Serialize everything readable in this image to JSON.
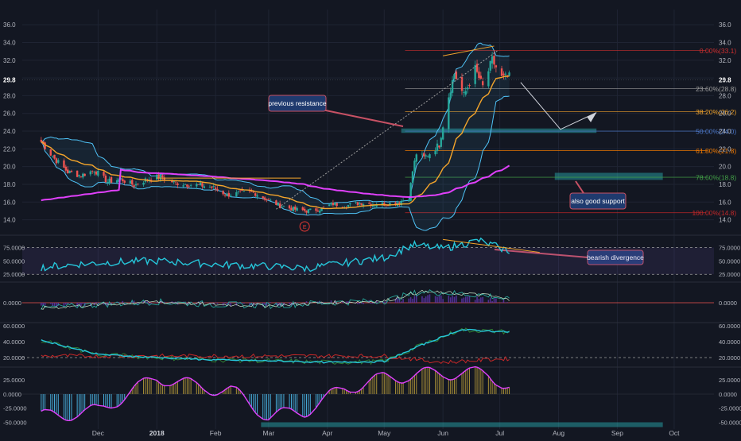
{
  "colors": {
    "background": "#131722",
    "grid": "#1f2433",
    "axis_text": "#b2b5be",
    "candle_up": "#26a69a",
    "candle_down": "#ef5350",
    "bollinger": "#4fc3f7",
    "ma_short": "#f4a52b",
    "ma_long": "#e040fb",
    "rsi": "#26c6da",
    "divergence": "#f4a52b",
    "callout_bg": "#1f3a6e",
    "callout_border": "#c75164",
    "zone": "#2bb3b9",
    "fib_0": "#d32f2f",
    "fib_236": "#9e9e9e",
    "fib_382": "#f4a52b",
    "fib_50": "#4d78c9",
    "fib_618": "#f57c00",
    "fib_786": "#43a047",
    "fib_100": "#c62828"
  },
  "chart_data": {
    "type": "candlestick",
    "x_ticks": [
      "Dec",
      "2018",
      "Feb",
      "Mar",
      "Apr",
      "May",
      "Jun",
      "Jul",
      "Aug",
      "Sep",
      "Oct"
    ],
    "price_axis": {
      "ylim": [
        12.8,
        37.0
      ],
      "ticks": [
        "36.0",
        "34.0",
        "32.0",
        "30.0",
        "29.8",
        "28.0",
        "26.0",
        "24.0",
        "22.0",
        "20.0",
        "18.0",
        "16.0",
        "14.0"
      ],
      "last_price": "29.8"
    },
    "price_series": {
      "start": "2017-11-01",
      "end": "2018-07-08",
      "close_anchors": [
        [
          "2017-11-01",
          22.8
        ],
        [
          "2017-11-08",
          20.9
        ],
        [
          "2017-11-15",
          19.4
        ],
        [
          "2017-11-22",
          19.0
        ],
        [
          "2017-11-29",
          19.6
        ],
        [
          "2017-12-06",
          18.3
        ],
        [
          "2017-12-13",
          18.6
        ],
        [
          "2017-12-20",
          17.9
        ],
        [
          "2017-12-27",
          18.6
        ],
        [
          "2018-01-03",
          18.9
        ],
        [
          "2018-01-10",
          18.2
        ],
        [
          "2018-01-17",
          18.0
        ],
        [
          "2018-01-24",
          17.9
        ],
        [
          "2018-01-31",
          17.6
        ],
        [
          "2018-02-07",
          16.8
        ],
        [
          "2018-02-14",
          17.0
        ],
        [
          "2018-02-21",
          17.1
        ],
        [
          "2018-02-28",
          16.3
        ],
        [
          "2018-03-07",
          15.6
        ],
        [
          "2018-03-14",
          15.2
        ],
        [
          "2018-03-21",
          15.0
        ],
        [
          "2018-03-28",
          15.2
        ],
        [
          "2018-04-04",
          15.8
        ],
        [
          "2018-04-11",
          15.6
        ],
        [
          "2018-04-18",
          15.9
        ],
        [
          "2018-04-25",
          15.8
        ],
        [
          "2018-05-02",
          15.8
        ],
        [
          "2018-05-09",
          16.0
        ],
        [
          "2018-05-14",
          16.5
        ],
        [
          "2018-05-16",
          19.5
        ],
        [
          "2018-05-18",
          21.5
        ],
        [
          "2018-05-22",
          21.0
        ],
        [
          "2018-05-25",
          21.5
        ],
        [
          "2018-05-30",
          22.5
        ],
        [
          "2018-06-04",
          28.0
        ],
        [
          "2018-06-07",
          30.5
        ],
        [
          "2018-06-12",
          28.0
        ],
        [
          "2018-06-18",
          31.0
        ],
        [
          "2018-06-22",
          29.0
        ],
        [
          "2018-06-27",
          32.0
        ],
        [
          "2018-07-02",
          30.0
        ],
        [
          "2018-07-06",
          30.1
        ],
        [
          "2018-07-08",
          29.8
        ]
      ]
    },
    "fibonacci": [
      {
        "label": "0.00%(33.1)",
        "value": 33.1,
        "color_key": "fib_0"
      },
      {
        "label": "23.60%(28.8)",
        "value": 28.8,
        "color_key": "fib_236"
      },
      {
        "label": "38.20%(26.2)",
        "value": 26.2,
        "color_key": "fib_382"
      },
      {
        "label": "50.00%(24.0)",
        "value": 24.0,
        "color_key": "fib_50"
      },
      {
        "label": "61.80%(21.8)",
        "value": 21.8,
        "color_key": "fib_618"
      },
      {
        "label": "78.60%(18.8)",
        "value": 18.8,
        "color_key": "fib_786"
      },
      {
        "label": "100.00%(14.8)",
        "value": 14.8,
        "color_key": "fib_100"
      }
    ],
    "annotations": {
      "previous_resistance": "previous resistance",
      "also_good_support": "also good support",
      "bearish_divergence": "bearish divergence",
      "earnings_marker": "E"
    },
    "rsi_panel": {
      "ticks": [
        "75.0000",
        "50.0000",
        "25.0000"
      ],
      "anchors": [
        [
          "2017-11-01",
          38
        ],
        [
          "2017-11-20",
          44
        ],
        [
          "2017-12-10",
          48
        ],
        [
          "2018-01-01",
          50
        ],
        [
          "2018-01-20",
          46
        ],
        [
          "2018-02-10",
          42
        ],
        [
          "2018-03-01",
          40
        ],
        [
          "2018-03-20",
          36
        ],
        [
          "2018-04-10",
          46
        ],
        [
          "2018-05-01",
          56
        ],
        [
          "2018-05-16",
          80
        ],
        [
          "2018-06-01",
          73
        ],
        [
          "2018-06-20",
          88
        ],
        [
          "2018-07-08",
          66
        ]
      ]
    },
    "macd_panel": {
      "ticks": [
        "0.0000"
      ],
      "anchors": [
        [
          "2017-11-01",
          -0.3
        ],
        [
          "2017-12-01",
          -0.1
        ],
        [
          "2018-01-01",
          0.05
        ],
        [
          "2018-02-01",
          -0.1
        ],
        [
          "2018-03-01",
          -0.15
        ],
        [
          "2018-04-01",
          0.0
        ],
        [
          "2018-05-01",
          0.1
        ],
        [
          "2018-05-20",
          0.6
        ],
        [
          "2018-06-10",
          0.5
        ],
        [
          "2018-06-25",
          0.4
        ],
        [
          "2018-07-08",
          0.1
        ]
      ]
    },
    "dmi_panel": {
      "ticks": [
        "60.0000",
        "40.0000",
        "20.0000"
      ],
      "anchors": [
        [
          "2017-11-01",
          42
        ],
        [
          "2017-12-01",
          24
        ],
        [
          "2018-01-01",
          20
        ],
        [
          "2018-02-01",
          17
        ],
        [
          "2018-03-01",
          16
        ],
        [
          "2018-04-01",
          14
        ],
        [
          "2018-05-01",
          15
        ],
        [
          "2018-05-20",
          35
        ],
        [
          "2018-06-10",
          55
        ],
        [
          "2018-07-08",
          52
        ]
      ]
    },
    "oscillator_panel": {
      "ticks": [
        "25.0000",
        "0.0000",
        "-25.0000",
        "-50.0000"
      ],
      "anchors": [
        [
          "2017-11-01",
          -40
        ],
        [
          "2017-12-01",
          -30
        ],
        [
          "2018-01-01",
          30
        ],
        [
          "2018-01-20",
          15
        ],
        [
          "2018-02-10",
          5
        ],
        [
          "2018-03-01",
          -40
        ],
        [
          "2018-03-20",
          -30
        ],
        [
          "2018-04-10",
          10
        ],
        [
          "2018-05-01",
          28
        ],
        [
          "2018-05-20",
          35
        ],
        [
          "2018-06-10",
          38
        ],
        [
          "2018-06-25",
          35
        ],
        [
          "2018-07-08",
          10
        ]
      ]
    }
  }
}
